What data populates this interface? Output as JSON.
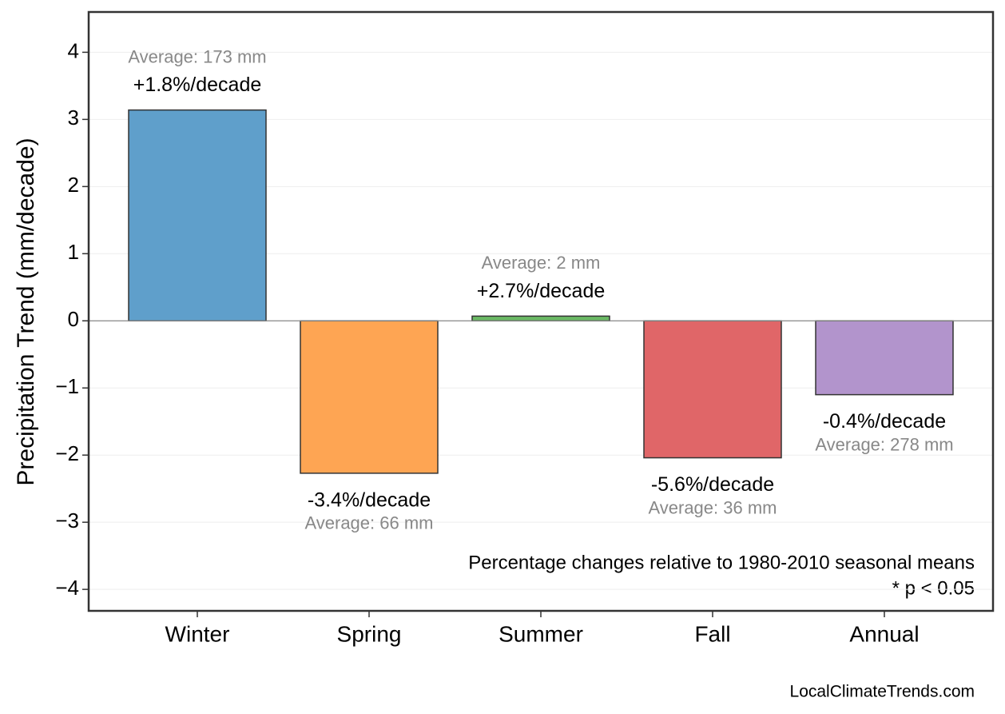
{
  "chart_data": {
    "type": "bar",
    "ylabel": "Precipitation Trend (mm/decade)",
    "categories": [
      "Winter",
      "Spring",
      "Summer",
      "Fall",
      "Annual"
    ],
    "values": [
      3.14,
      -2.27,
      0.07,
      -2.04,
      -1.1
    ],
    "colors": [
      "#5f9fcb",
      "#fea553",
      "#6ab964",
      "#e06668",
      "#b294cc"
    ],
    "trend_labels": [
      "+1.8%/decade",
      "-3.4%/decade",
      "+2.7%/decade",
      "-5.6%/decade",
      "-0.4%/decade"
    ],
    "average_labels": [
      "Average: 173 mm",
      "Average: 66 mm",
      "Average: 2 mm",
      "Average: 36 mm",
      "Average: 278 mm"
    ],
    "ylim": [
      -4.32,
      4.6
    ],
    "yticks": [
      {
        "value": -4,
        "label": "−4"
      },
      {
        "value": -3,
        "label": "−3"
      },
      {
        "value": -2,
        "label": "−2"
      },
      {
        "value": -1,
        "label": "−1"
      },
      0,
      1,
      2,
      3,
      4
    ],
    "grid": true,
    "notes": [
      "Percentage changes relative to 1980-2010 seasonal means",
      "* p < 0.05"
    ],
    "source": "LocalClimateTrends.com"
  }
}
